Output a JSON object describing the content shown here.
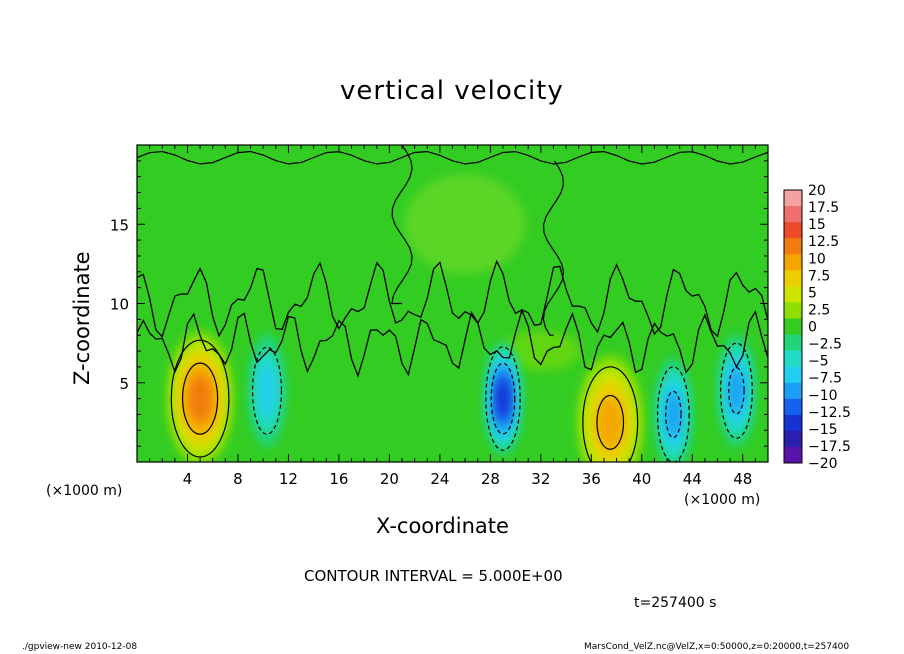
{
  "chart_data": {
    "type": "heatmap",
    "title": "vertical velocity",
    "xlabel": "X-coordinate",
    "ylabel": "Z-coordinate",
    "x_unit_label_left": "(×1000 m)",
    "x_unit_label_right": "(×1000 m)",
    "xlim": [
      0,
      50
    ],
    "ylim": [
      0,
      20
    ],
    "x_ticks": [
      4,
      8,
      12,
      16,
      20,
      24,
      28,
      32,
      36,
      40,
      44,
      48
    ],
    "y_ticks": [
      5,
      10,
      15
    ],
    "colorbar": {
      "levels": [
        "20",
        "17.5",
        "15",
        "12.5",
        "10",
        "7.5",
        "5",
        "2.5",
        "0",
        "−2.5",
        "−5",
        "−7.5",
        "−10",
        "−12.5",
        "−15",
        "−17.5",
        "−20"
      ],
      "colors": [
        "#f6a1a1",
        "#ef6f6f",
        "#ec4a2a",
        "#f07b0e",
        "#f4a600",
        "#eccd00",
        "#cce400",
        "#8fe000",
        "#33cc22",
        "#22d37a",
        "#22dbc8",
        "#22cfef",
        "#1d9ff3",
        "#1660ee",
        "#1433d2",
        "#2c1fb0",
        "#5a13a8"
      ]
    },
    "features": [
      {
        "kind": "updraft",
        "x": 5,
        "z": 4,
        "peak": 12.5
      },
      {
        "kind": "downdraft",
        "x": 10.3,
        "z": 4.5,
        "peak": -7.5
      },
      {
        "kind": "downdraft",
        "x": 29,
        "z": 4,
        "peak": -15
      },
      {
        "kind": "updraft",
        "x": 37.5,
        "z": 2.5,
        "peak": 10
      },
      {
        "kind": "downdraft",
        "x": 42.5,
        "z": 3,
        "peak": -10
      },
      {
        "kind": "downdraft",
        "x": 47.5,
        "z": 4.5,
        "peak": -10
      }
    ]
  },
  "annotations": {
    "contour_interval": "CONTOUR INTERVAL = 5.000E+00",
    "time": "t=257400 s",
    "footer_left": "./gpview-new  2010-12-08",
    "footer_right": "MarsCond_VelZ.nc@VelZ,x=0:50000,z=0:20000,t=257400"
  }
}
